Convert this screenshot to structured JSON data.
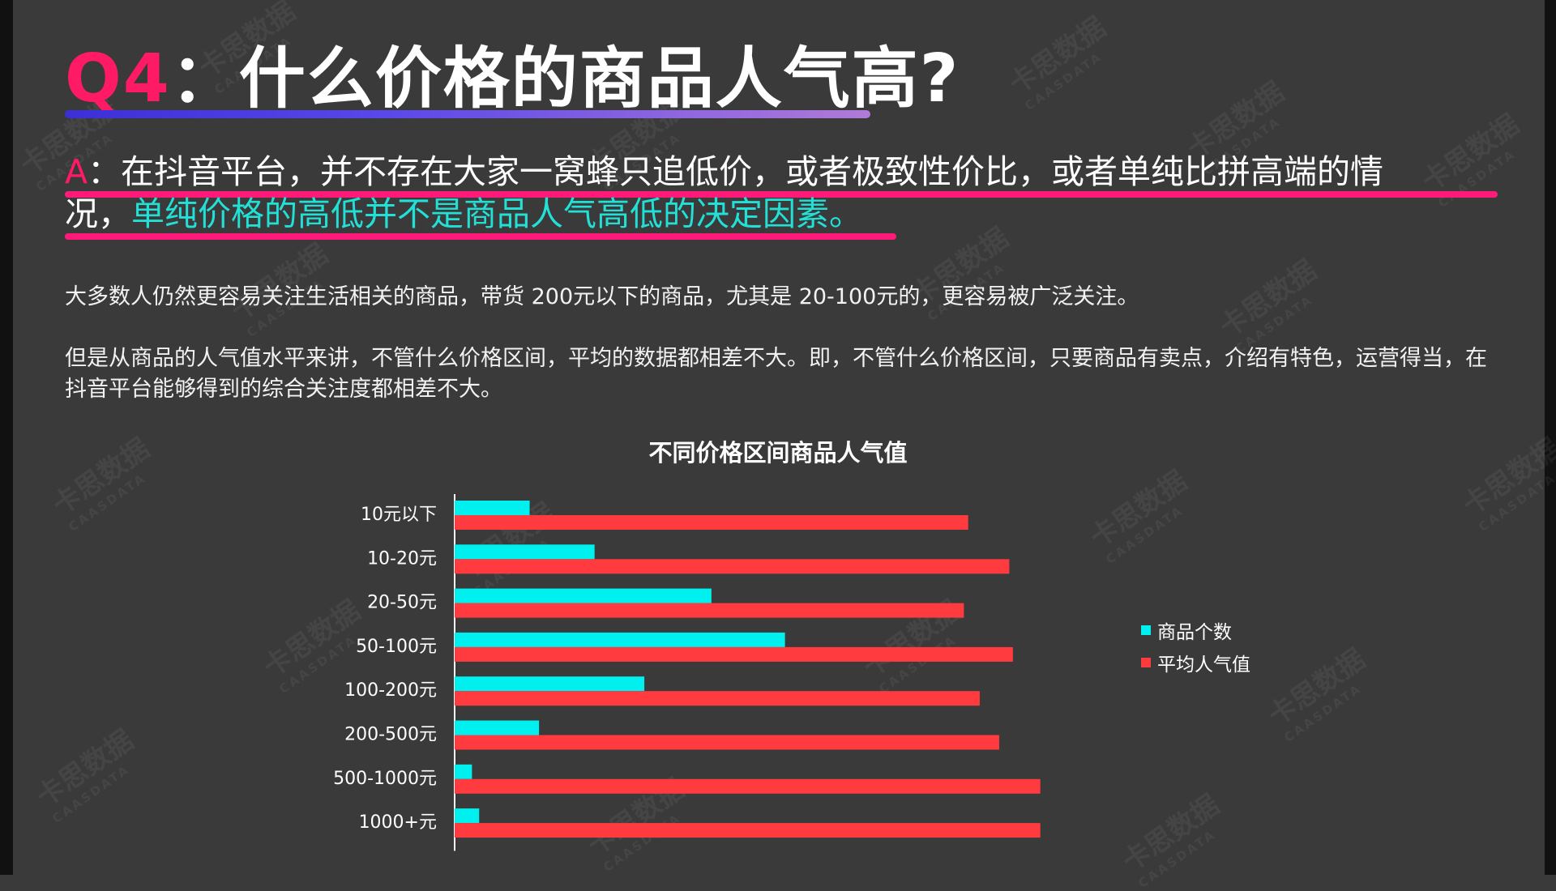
{
  "slide": {
    "title_q": "Q4",
    "title_rest": "：什么价格的商品人气高?",
    "answer_prefix": "A",
    "answer_line1_rest": "：在抖音平台，并不存在大家一窝蜂只追低价，或者极致性价比，或者单纯比拼高端的情",
    "answer_line2_plain": "况，",
    "answer_line2_highlight": "单纯价格的高低并不是商品人气高低的决定因素。",
    "para1": "大多数人仍然更容易关注生活相关的商品，带货 200元以下的商品，尤其是 20-100元的，更容易被广泛关注。",
    "para2": "但是从商品的人气值水平来讲，不管什么价格区间，平均的数据都相差不大。即，不管什么价格区间，只要商品有卖点，介绍有特色，运营得当，在抖音平台能够得到的综合关注度都相差不大。",
    "watermark_cn": "卡思数据",
    "watermark_en": "CAASDATA"
  },
  "chart_data": {
    "type": "bar",
    "orientation": "horizontal",
    "title": "不同价格区间商品人气值",
    "categories": [
      "10元以下",
      "10-20元",
      "20-50元",
      "50-100元",
      "100-200元",
      "200-500元",
      "500-1000元",
      "1000+元"
    ],
    "series": [
      {
        "name": "商品个数",
        "color": "#00f0f0",
        "values": [
          10.4,
          19.4,
          35.6,
          45.8,
          26.3,
          11.7,
          2.4,
          3.4
        ]
      },
      {
        "name": "平均人气值",
        "color": "#ff3b3f",
        "values": [
          71.2,
          76.9,
          70.6,
          77.4,
          72.8,
          75.5,
          81.2,
          81.2
        ]
      }
    ],
    "xlim": [
      0,
      100
    ],
    "grid": false,
    "legend_position": "right"
  }
}
